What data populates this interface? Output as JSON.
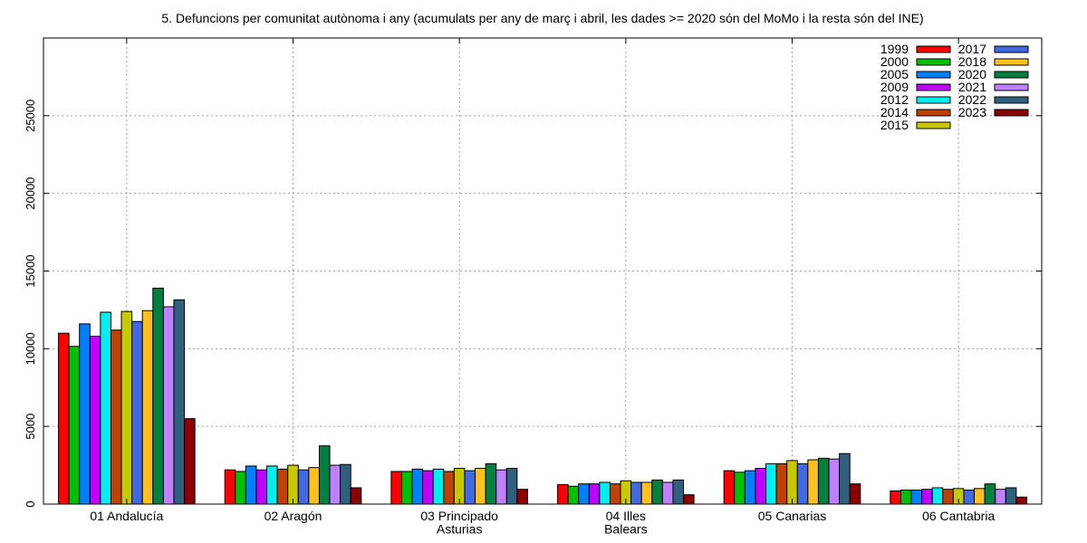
{
  "chart_data": {
    "type": "bar",
    "title": "5. Defuncions per comunitat autònoma i any (acumulats per any de març i abril, les dades >= 2020 són del MoMo i la resta són del INE)",
    "categories": [
      [
        "01 Andalucía"
      ],
      [
        "02 Aragón"
      ],
      [
        "03 Principado",
        "Asturias"
      ],
      [
        "04 Illes",
        "Balears"
      ],
      [
        "05 Canarias"
      ],
      [
        "06 Cantabria"
      ]
    ],
    "ylim": [
      0,
      30000
    ],
    "yticks": [
      0,
      5000,
      10000,
      15000,
      20000,
      25000
    ],
    "grid": true,
    "legend_position": "top-right",
    "series": [
      {
        "name": "1999",
        "color": "#ff0000",
        "values": [
          11000,
          2200,
          2100,
          1250,
          2150,
          850
        ]
      },
      {
        "name": "2000",
        "color": "#00c000",
        "values": [
          10150,
          2100,
          2100,
          1150,
          2050,
          900
        ]
      },
      {
        "name": "2005",
        "color": "#0080ff",
        "values": [
          11600,
          2450,
          2250,
          1300,
          2150,
          900
        ]
      },
      {
        "name": "2009",
        "color": "#c000ff",
        "values": [
          10800,
          2200,
          2150,
          1300,
          2300,
          950
        ]
      },
      {
        "name": "2012",
        "color": "#00eeee",
        "values": [
          12350,
          2450,
          2250,
          1400,
          2600,
          1050
        ]
      },
      {
        "name": "2014",
        "color": "#c04000",
        "values": [
          11200,
          2250,
          2100,
          1300,
          2600,
          950
        ]
      },
      {
        "name": "2015",
        "color": "#c8c800",
        "values": [
          12400,
          2500,
          2300,
          1500,
          2800,
          1000
        ]
      },
      {
        "name": "2017",
        "color": "#4169e1",
        "values": [
          11750,
          2200,
          2150,
          1400,
          2600,
          900
        ]
      },
      {
        "name": "2018",
        "color": "#ffc020",
        "values": [
          12450,
          2350,
          2300,
          1400,
          2850,
          1000
        ]
      },
      {
        "name": "2020",
        "color": "#008040",
        "values": [
          13900,
          3750,
          2600,
          1550,
          2950,
          1300
        ]
      },
      {
        "name": "2021",
        "color": "#c080ff",
        "values": [
          12700,
          2500,
          2200,
          1400,
          2900,
          950
        ]
      },
      {
        "name": "2022",
        "color": "#306080",
        "values": [
          13150,
          2550,
          2300,
          1550,
          3250,
          1050
        ]
      },
      {
        "name": "2023",
        "color": "#8b0000",
        "values": [
          5500,
          1050,
          950,
          600,
          1300,
          450
        ]
      }
    ]
  }
}
